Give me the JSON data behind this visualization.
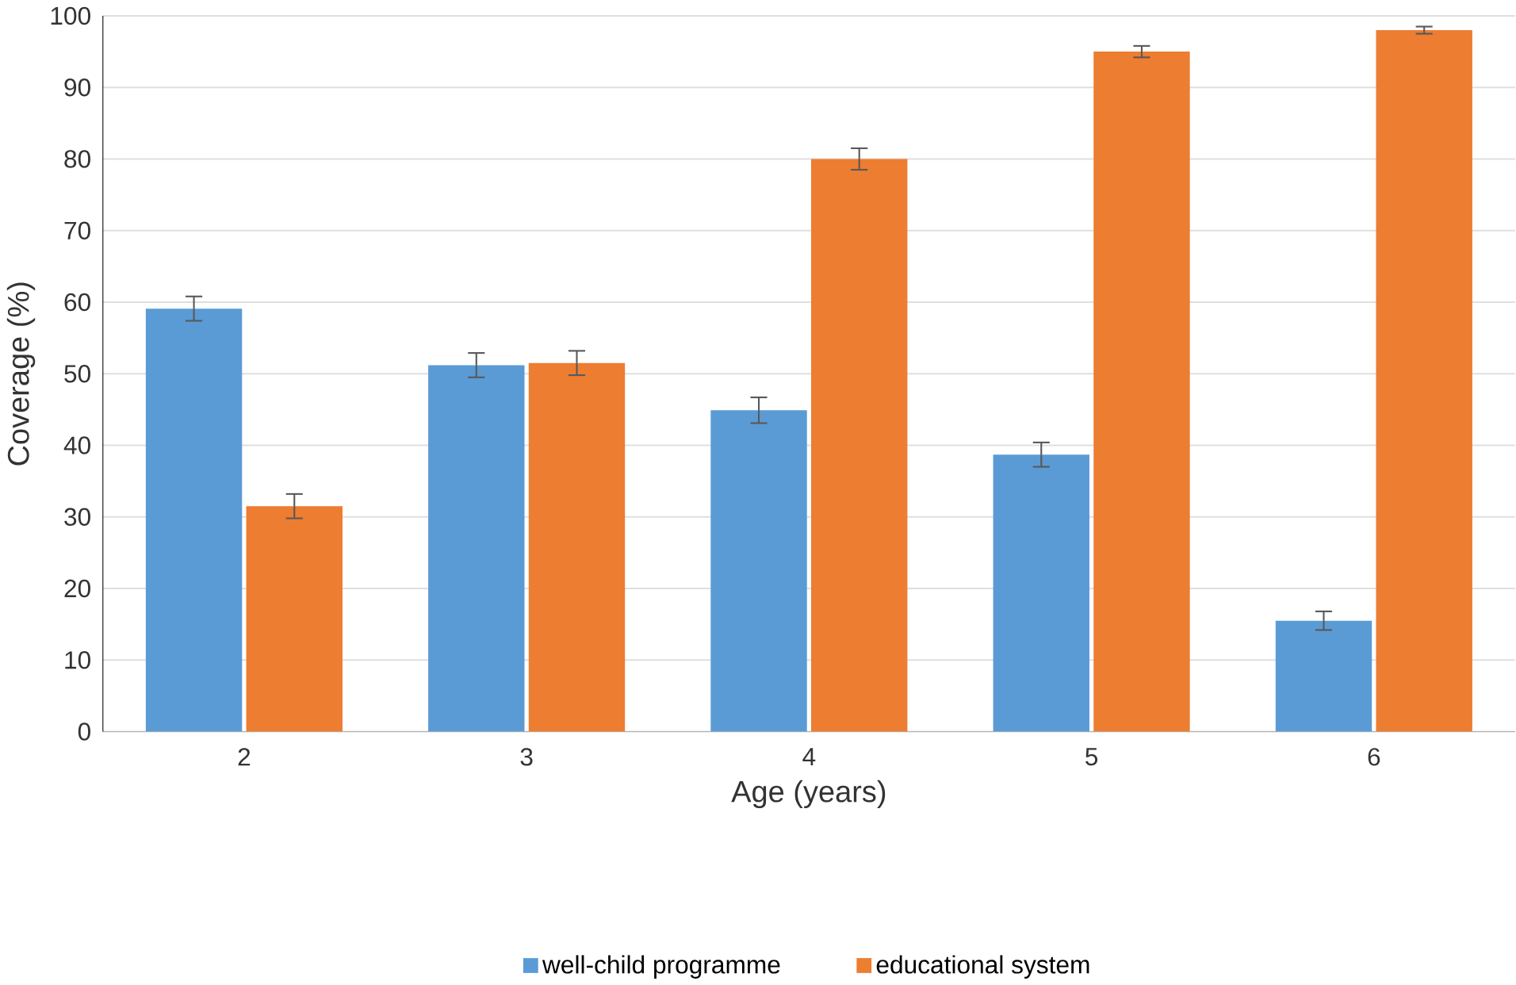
{
  "chart_data": {
    "type": "bar",
    "xlabel": "Age (years)",
    "ylabel": "Coverage (%)",
    "categories": [
      "2",
      "3",
      "4",
      "5",
      "6"
    ],
    "series": [
      {
        "name": "well-child programme",
        "color": "#5b9bd5",
        "values": [
          59.1,
          51.2,
          44.9,
          38.7,
          15.5
        ],
        "errors": [
          1.7,
          1.7,
          1.8,
          1.7,
          1.3
        ]
      },
      {
        "name": "educational system",
        "color": "#ed7d31",
        "values": [
          31.5,
          51.5,
          80,
          95,
          98
        ],
        "errors": [
          1.7,
          1.7,
          1.5,
          0.8,
          0.5
        ]
      }
    ],
    "ylim": [
      0,
      100
    ],
    "yticks": [
      0,
      10,
      20,
      30,
      40,
      50,
      60,
      70,
      80,
      90,
      100
    ],
    "grid": "y",
    "legend": "bottom"
  }
}
